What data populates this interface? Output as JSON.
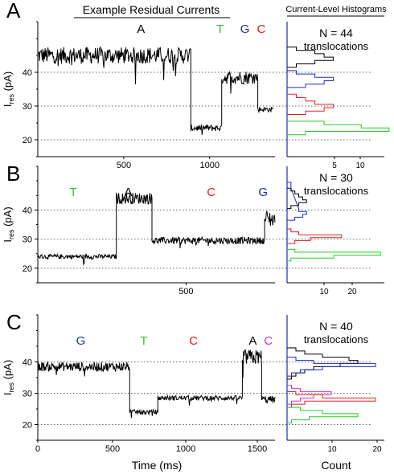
{
  "header": {
    "left_title": "Example Residual Currents",
    "right_title": "Current-Level Histograms"
  },
  "axes": {
    "ylabel_main": "I",
    "ylabel_sub": "res",
    "ylabel_unit": " (pA)",
    "xlabel_trace": "Time (ms)",
    "xlabel_hist": "Count"
  },
  "colors": {
    "A": "#000000",
    "T": "#22cc22",
    "G": "#1f2bbf",
    "C": "#dd2222",
    "mC": "#cc33cc"
  },
  "chart_data": [
    {
      "type": "line",
      "panel": "A",
      "title": "Example Residual Currents",
      "xlabel": "",
      "ylabel": "Ires (pA)",
      "xlim": [
        0,
        1380
      ],
      "ylim": [
        15,
        55
      ],
      "yticks": [
        20,
        30,
        40
      ],
      "xticks": [
        500,
        1000
      ],
      "gridlines": [
        20,
        30,
        40
      ],
      "segments": [
        {
          "x0": 0,
          "x1": 890,
          "level": 45,
          "noise": 2.5
        },
        {
          "x0": 890,
          "x1": 1070,
          "level": 23.5,
          "noise": 1.0
        },
        {
          "x0": 1070,
          "x1": 1280,
          "level": 38.5,
          "noise": 2.0
        },
        {
          "x0": 1280,
          "x1": 1370,
          "level": 29,
          "noise": 0.8
        }
      ],
      "bases": [
        {
          "label": "A",
          "color": "A",
          "x": 600
        },
        {
          "label": "T",
          "color": "T",
          "x": 1060
        },
        {
          "label": "G",
          "color": "G",
          "x": 1205
        },
        {
          "label": "C",
          "color": "C",
          "x": 1300
        }
      ],
      "hist": {
        "annotation": "N = 44",
        "annotation2": "translocations",
        "xlim": [
          0,
          10.5
        ],
        "xticks": [
          5,
          10
        ],
        "series": [
          {
            "name": "A",
            "color": "A",
            "y": [
              47,
              46,
              45,
              44,
              43,
              42
            ],
            "counts": [
              1,
              3,
              4,
              5,
              3,
              1
            ]
          },
          {
            "name": "G",
            "color": "G",
            "y": [
              40,
              39,
              38,
              37,
              36
            ],
            "counts": [
              1,
              3,
              5,
              4,
              2
            ]
          },
          {
            "name": "C",
            "color": "C",
            "y": [
              33,
              32,
              31,
              30,
              29,
              28
            ],
            "counts": [
              1,
              2,
              3,
              5,
              4,
              2
            ]
          },
          {
            "name": "T",
            "color": "T",
            "y": [
              25,
              24,
              23,
              22
            ],
            "counts": [
              4,
              8,
              11,
              2
            ]
          }
        ]
      }
    },
    {
      "type": "line",
      "panel": "B",
      "xlabel": "",
      "ylabel": "Ires (pA)",
      "xlim": [
        0,
        800
      ],
      "ylim": [
        15,
        55
      ],
      "yticks": [
        20,
        30,
        40
      ],
      "xticks": [
        500
      ],
      "gridlines": [
        20,
        30,
        40
      ],
      "segments": [
        {
          "x0": 0,
          "x1": 265,
          "level": 24,
          "noise": 0.8
        },
        {
          "x0": 265,
          "x1": 385,
          "level": 44,
          "noise": 2.0
        },
        {
          "x0": 385,
          "x1": 765,
          "level": 29.5,
          "noise": 1.2
        },
        {
          "x0": 765,
          "x1": 800,
          "level": 37,
          "noise": 3.0
        }
      ],
      "bases": [
        {
          "label": "T",
          "color": "T",
          "x": 120
        },
        {
          "label": "A",
          "color": "A",
          "x": 305
        },
        {
          "label": "C",
          "color": "C",
          "x": 585
        },
        {
          "label": "G",
          "color": "G",
          "x": 760
        }
      ],
      "hist": {
        "annotation": "N = 30",
        "annotation2": "translocations",
        "xlim": [
          0,
          25
        ],
        "xticks": [
          10,
          20
        ],
        "series": [
          {
            "name": "A",
            "color": "A",
            "y": [
              47,
              46,
              45,
              44,
              43,
              42,
              41
            ],
            "counts": [
              1,
              2,
              3,
              4,
              5,
              3,
              1
            ]
          },
          {
            "name": "G",
            "color": "G",
            "y": [
              49,
              48,
              40,
              39,
              38,
              37
            ],
            "counts": [
              1,
              1,
              3,
              5,
              4,
              2
            ]
          },
          {
            "name": "C",
            "color": "C",
            "y": [
              33,
              32,
              31,
              30,
              29
            ],
            "counts": [
              1,
              3,
              14,
              6,
              2
            ]
          },
          {
            "name": "T",
            "color": "T",
            "y": [
              26,
              25,
              24,
              23
            ],
            "counts": [
              2,
              24,
              12,
              1
            ]
          }
        ]
      }
    },
    {
      "type": "line",
      "panel": "C",
      "xlabel": "Time (ms)",
      "ylabel": "Ires (pA)",
      "xlim": [
        0,
        1600
      ],
      "ylim": [
        15,
        55
      ],
      "yticks": [
        20,
        30,
        40
      ],
      "xticks": [
        0,
        500,
        1000,
        1500
      ],
      "gridlines": [
        20,
        30,
        40
      ],
      "segments": [
        {
          "x0": 0,
          "x1": 620,
          "level": 38.5,
          "noise": 1.5
        },
        {
          "x0": 620,
          "x1": 810,
          "level": 24,
          "noise": 0.8
        },
        {
          "x0": 810,
          "x1": 1380,
          "level": 28.5,
          "noise": 0.8
        },
        {
          "x0": 1380,
          "x1": 1510,
          "level": 41.5,
          "noise": 2.5
        },
        {
          "x0": 1510,
          "x1": 1600,
          "level": 28,
          "noise": 1.2
        }
      ],
      "bases": [
        {
          "label": "G",
          "color": "G",
          "x": 290
        },
        {
          "label": "T",
          "color": "T",
          "x": 715
        },
        {
          "label": "C",
          "color": "C",
          "x": 1050
        },
        {
          "label": "A",
          "color": "A",
          "x": 1450
        },
        {
          "label": "C",
          "color": "mC",
          "x": 1555
        }
      ],
      "hist": {
        "annotation": "N = 40",
        "annotation2": "translocations",
        "xlim": [
          0,
          22
        ],
        "xticks": [
          10,
          20
        ],
        "series": [
          {
            "name": "A",
            "color": "A",
            "y": [
              44,
              43,
              42,
              41,
              40,
              39,
              38,
              37,
              36,
              35
            ],
            "counts": [
              2,
              4,
              8,
              14,
              16,
              12,
              6,
              4,
              2,
              1
            ]
          },
          {
            "name": "G",
            "color": "G",
            "y": [
              41,
              40,
              39,
              38,
              37,
              36
            ],
            "counts": [
              2,
              6,
              20,
              8,
              3,
              1
            ]
          },
          {
            "name": "mC",
            "color": "mC",
            "y": [
              32,
              31,
              30,
              29,
              28,
              27
            ],
            "counts": [
              1,
              3,
              10,
              6,
              3,
              1
            ]
          },
          {
            "name": "C",
            "color": "C",
            "y": [
              30,
              29,
              28,
              27,
              26
            ],
            "counts": [
              2,
              8,
              20,
              4,
              1
            ]
          },
          {
            "name": "T",
            "color": "T",
            "y": [
              25,
              24,
              23,
              22,
              21
            ],
            "counts": [
              3,
              8,
              16,
              5,
              1
            ]
          }
        ]
      }
    }
  ]
}
